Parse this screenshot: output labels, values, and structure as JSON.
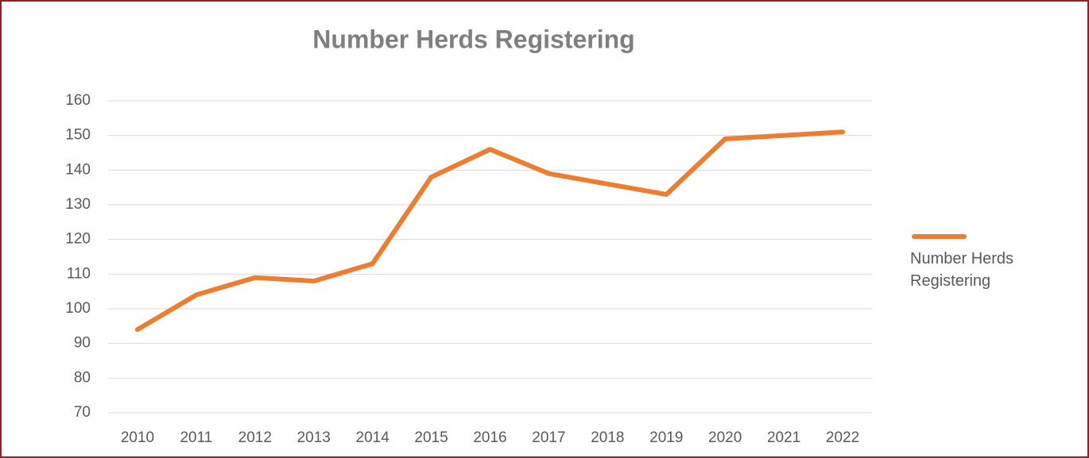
{
  "chart_data": {
    "type": "line",
    "title": "Number Herds Registering",
    "categories": [
      "2010",
      "2011",
      "2012",
      "2013",
      "2014",
      "2015",
      "2016",
      "2017",
      "2018",
      "2019",
      "2020",
      "2021",
      "2022"
    ],
    "series": [
      {
        "name": "Number Herds Registering",
        "color": "#ed7d31",
        "values": [
          94,
          104,
          109,
          108,
          113,
          138,
          146,
          139,
          136,
          133,
          149,
          150,
          151
        ]
      }
    ],
    "ylim": [
      70,
      160
    ],
    "yticks": [
      70,
      80,
      90,
      100,
      110,
      120,
      130,
      140,
      150,
      160
    ],
    "grid": true,
    "legend": "right"
  }
}
